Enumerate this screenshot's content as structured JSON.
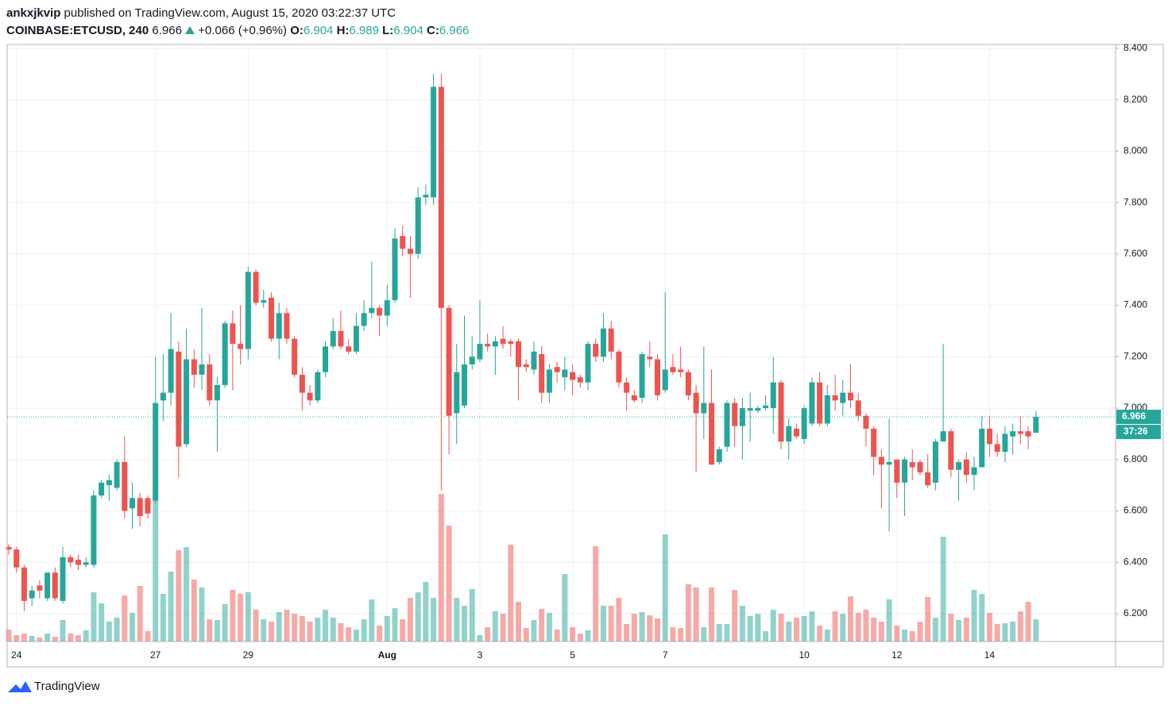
{
  "header": {
    "author": "ankxjkvip",
    "published": "published on TradingView.com, August 15, 2020 03:22:37 UTC",
    "symbol": "COINBASE:ETCUSD, 240",
    "change": "+0.066 (+0.96%)",
    "open_label": "O:",
    "high_label": "H:",
    "low_label": "L:",
    "close_label": "C:"
  },
  "countdown": "37:26",
  "footer": {
    "logo": "TradingView"
  },
  "chart_data": {
    "type": "candlestick",
    "up_color": "#26a69a",
    "down_color": "#ef5350",
    "grid": true,
    "ylim": [
      6.092,
      8.415
    ],
    "yticks": [
      {
        "value": 6.2,
        "label": "6.200"
      },
      {
        "value": 6.4,
        "label": "6.400"
      },
      {
        "value": 6.6,
        "label": "6.600"
      },
      {
        "value": 6.8,
        "label": "6.800"
      },
      {
        "value": 7.0,
        "label": "7.000"
      },
      {
        "value": 7.2,
        "label": "7.200"
      },
      {
        "value": 7.4,
        "label": "7.400"
      },
      {
        "value": 7.6,
        "label": "7.600"
      },
      {
        "value": 7.8,
        "label": "7.800"
      },
      {
        "value": 8.0,
        "label": "8.000"
      },
      {
        "value": 8.2,
        "label": "8.200"
      },
      {
        "value": 8.4,
        "label": "8.400"
      }
    ],
    "categories": [
      null,
      "24",
      null,
      null,
      null,
      null,
      null,
      null,
      null,
      null,
      null,
      null,
      null,
      null,
      null,
      null,
      null,
      null,
      null,
      "27",
      null,
      null,
      null,
      null,
      null,
      null,
      null,
      null,
      null,
      null,
      null,
      "29",
      null,
      null,
      null,
      null,
      null,
      null,
      null,
      null,
      null,
      null,
      null,
      null,
      null,
      null,
      null,
      null,
      null,
      "Aug",
      null,
      null,
      null,
      null,
      null,
      null,
      null,
      null,
      null,
      null,
      null,
      "3",
      null,
      null,
      null,
      null,
      null,
      null,
      null,
      null,
      null,
      null,
      null,
      "5",
      null,
      null,
      null,
      null,
      null,
      null,
      null,
      null,
      null,
      null,
      null,
      "7",
      null,
      null,
      null,
      null,
      null,
      null,
      null,
      null,
      null,
      null,
      null,
      null,
      null,
      null,
      null,
      null,
      null,
      "10",
      null,
      null,
      null,
      null,
      null,
      null,
      null,
      null,
      null,
      null,
      null,
      "12",
      null,
      null,
      null,
      null,
      null,
      null,
      null,
      null,
      null,
      null,
      null,
      "14",
      null,
      null,
      null,
      null,
      null,
      null
    ],
    "open": [
      6.46,
      6.45,
      6.38,
      6.26,
      6.31,
      6.26,
      6.36,
      6.25,
      6.42,
      6.41,
      6.39,
      6.39,
      6.66,
      6.7,
      6.69,
      6.79,
      6.61,
      6.65,
      6.65,
      6.64,
      7.03,
      7.06,
      7.22,
      6.86,
      7.19,
      7.13,
      7.17,
      7.03,
      7.09,
      7.33,
      7.25,
      7.23,
      7.53,
      7.41,
      7.43,
      7.27,
      7.37,
      7.27,
      7.13,
      7.06,
      7.03,
      7.14,
      7.24,
      7.3,
      7.24,
      7.22,
      7.32,
      7.37,
      7.39,
      7.36,
      7.42,
      7.67,
      7.62,
      7.6,
      7.82,
      7.82,
      8.25,
      7.39,
      6.98,
      7.01,
      7.17,
      7.19,
      7.25,
      7.24,
      7.27,
      7.26,
      7.26,
      7.17,
      7.15,
      7.21,
      7.06,
      7.16,
      7.12,
      7.14,
      7.12,
      7.1,
      7.25,
      7.2,
      7.31,
      7.22,
      7.1,
      7.05,
      7.04,
      7.2,
      7.19,
      7.07,
      7.16,
      7.15,
      7.14,
      7.06,
      6.98,
      7.02,
      6.79,
      6.85,
      7.02,
      6.93,
      6.99,
      6.99,
      7.0,
      7.0,
      7.1,
      6.87,
      6.92,
      6.88,
      6.94,
      7.1,
      6.94,
      7.05,
      7.02,
      7.06,
      7.03,
      6.97,
      6.92,
      6.81,
      6.78,
      6.8,
      6.71,
      6.79,
      6.79,
      6.75,
      6.71,
      6.87,
      6.91,
      6.76,
      6.8,
      6.74,
      6.77,
      6.92,
      6.86,
      6.83,
      6.89,
      6.91,
      6.91,
      6.904
    ],
    "high": [
      6.47,
      6.46,
      6.39,
      6.31,
      6.33,
      6.36,
      6.38,
      6.46,
      6.43,
      6.43,
      6.42,
      6.68,
      6.72,
      6.74,
      6.8,
      6.89,
      6.71,
      6.67,
      6.66,
      7.2,
      7.21,
      7.37,
      7.26,
      7.31,
      7.23,
      7.39,
      7.21,
      7.12,
      7.34,
      7.38,
      7.4,
      7.55,
      7.54,
      7.46,
      7.45,
      7.41,
      7.39,
      7.28,
      7.16,
      7.09,
      7.15,
      7.26,
      7.35,
      7.38,
      7.27,
      7.37,
      7.42,
      7.57,
      7.4,
      7.48,
      7.7,
      7.71,
      7.67,
      7.86,
      7.87,
      8.3,
      8.3,
      7.4,
      7.25,
      7.36,
      7.28,
      7.42,
      7.29,
      7.28,
      7.32,
      7.27,
      7.27,
      7.19,
      7.26,
      7.24,
      7.17,
      7.18,
      7.2,
      7.17,
      7.13,
      7.26,
      7.27,
      7.37,
      7.34,
      7.23,
      7.12,
      7.07,
      7.22,
      7.26,
      7.21,
      7.45,
      7.21,
      7.24,
      7.15,
      7.09,
      7.24,
      7.15,
      6.85,
      7.03,
      7.04,
      7.04,
      7.06,
      7.01,
      7.05,
      7.2,
      7.11,
      6.96,
      6.94,
      7.01,
      7.12,
      7.14,
      7.09,
      7.13,
      7.11,
      7.17,
      7.06,
      6.98,
      6.93,
      6.84,
      6.96,
      6.8,
      6.81,
      6.84,
      6.8,
      6.82,
      6.88,
      7.25,
      6.92,
      6.8,
      6.83,
      6.81,
      6.97,
      6.97,
      6.9,
      6.93,
      6.94,
      6.97,
      6.93,
      6.989
    ],
    "low": [
      6.43,
      6.36,
      6.21,
      6.23,
      6.26,
      6.25,
      6.25,
      6.24,
      6.38,
      6.37,
      6.38,
      6.38,
      6.65,
      6.64,
      6.68,
      6.57,
      6.53,
      6.54,
      6.57,
      6.63,
      6.95,
      7.01,
      6.73,
      6.85,
      7.08,
      7.07,
      7.01,
      6.83,
      7.08,
      7.07,
      7.17,
      7.19,
      7.4,
      7.39,
      7.26,
      7.19,
      7.25,
      7.12,
      6.99,
      7.01,
      7.02,
      7.12,
      7.23,
      7.23,
      7.21,
      7.21,
      7.3,
      7.35,
      7.28,
      7.32,
      7.41,
      7.59,
      7.43,
      7.58,
      7.79,
      7.79,
      6.68,
      6.82,
      6.86,
      7.0,
      7.15,
      7.18,
      7.22,
      7.13,
      7.23,
      7.2,
      7.03,
      7.14,
      7.13,
      7.02,
      7.02,
      7.1,
      7.07,
      7.05,
      7.08,
      7.07,
      7.18,
      7.18,
      7.19,
      7.08,
      6.99,
      7.02,
      7.02,
      7.16,
      7.03,
      7.06,
      7.13,
      7.12,
      7.03,
      6.75,
      6.88,
      6.78,
      6.78,
      6.83,
      6.85,
      6.8,
      6.87,
      6.98,
      6.99,
      6.9,
      6.84,
      6.8,
      6.88,
      6.86,
      6.93,
      6.93,
      6.93,
      6.99,
      6.97,
      7.0,
      6.95,
      6.85,
      6.74,
      6.61,
      6.52,
      6.65,
      6.58,
      6.72,
      6.74,
      6.69,
      6.68,
      6.87,
      6.73,
      6.64,
      6.71,
      6.68,
      6.77,
      6.81,
      6.81,
      6.79,
      6.82,
      6.86,
      6.84,
      6.904
    ],
    "close": [
      6.45,
      6.38,
      6.25,
      6.29,
      6.29,
      6.36,
      6.26,
      6.42,
      6.4,
      6.39,
      6.4,
      6.66,
      6.71,
      6.72,
      6.79,
      6.6,
      6.65,
      6.58,
      6.59,
      7.02,
      7.06,
      7.23,
      6.85,
      7.19,
      7.13,
      7.17,
      7.03,
      7.09,
      7.33,
      7.25,
      7.23,
      7.53,
      7.41,
      7.42,
      7.27,
      7.37,
      7.27,
      7.13,
      7.06,
      7.03,
      7.14,
      7.24,
      7.3,
      7.24,
      7.22,
      7.32,
      7.37,
      7.39,
      7.36,
      7.42,
      7.66,
      7.62,
      7.6,
      7.82,
      7.83,
      8.25,
      7.39,
      6.97,
      7.14,
      7.17,
      7.2,
      7.25,
      7.24,
      7.26,
      7.25,
      7.25,
      7.16,
      7.16,
      7.22,
      7.06,
      7.15,
      7.14,
      7.15,
      7.11,
      7.1,
      7.25,
      7.2,
      7.31,
      7.22,
      7.1,
      7.06,
      7.03,
      7.21,
      7.19,
      7.05,
      7.15,
      7.14,
      7.14,
      7.05,
      6.98,
      7.02,
      6.78,
      6.84,
      7.02,
      6.93,
      7.0,
      7.0,
      7.0,
      7.01,
      7.1,
      6.87,
      6.93,
      6.89,
      7.0,
      7.1,
      6.94,
      7.05,
      7.03,
      7.06,
      7.03,
      6.97,
      6.92,
      6.81,
      6.78,
      6.79,
      6.71,
      6.8,
      6.77,
      6.75,
      6.7,
      6.87,
      6.91,
      6.76,
      6.79,
      6.74,
      6.77,
      6.92,
      6.86,
      6.83,
      6.9,
      6.91,
      6.9,
      6.89,
      6.966
    ],
    "volume": [
      15,
      8,
      10,
      7,
      5,
      10,
      6,
      27,
      10,
      8,
      14,
      62,
      48,
      25,
      30,
      58,
      36,
      70,
      13,
      183,
      60,
      88,
      115,
      119,
      78,
      68,
      28,
      27,
      47,
      65,
      60,
      62,
      40,
      28,
      25,
      37,
      40,
      35,
      32,
      25,
      30,
      40,
      30,
      23,
      18,
      15,
      28,
      53,
      20,
      32,
      42,
      28,
      55,
      62,
      75,
      55,
      186,
      146,
      55,
      45,
      66,
      8,
      18,
      38,
      35,
      122,
      50,
      17,
      27,
      41,
      36,
      15,
      85,
      18,
      10,
      14,
      120,
      45,
      45,
      55,
      22,
      35,
      37,
      33,
      29,
      135,
      18,
      17,
      72,
      68,
      18,
      68,
      22,
      22,
      65,
      45,
      32,
      35,
      13,
      40,
      35,
      25,
      30,
      32,
      38,
      20,
      15,
      38,
      35,
      57,
      36,
      40,
      30,
      25,
      53,
      20,
      15,
      13,
      25,
      56,
      30,
      132,
      35,
      27,
      30,
      65,
      60,
      36,
      22,
      23,
      25,
      38,
      50,
      28
    ]
  }
}
